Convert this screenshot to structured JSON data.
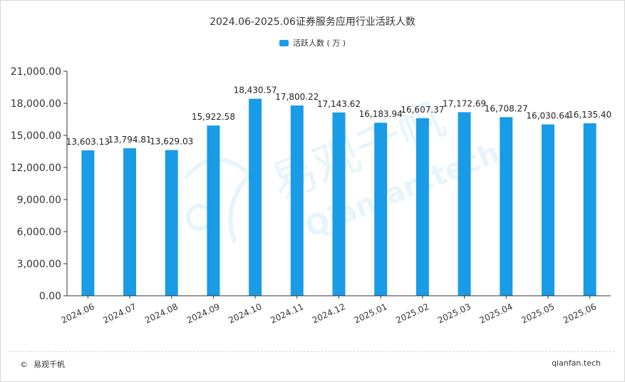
{
  "chart_data": {
    "type": "bar",
    "title": "2024.06-2025.06证券服务应用行业活跃人数",
    "categories": [
      "2024.06",
      "2024.07",
      "2024.08",
      "2024.09",
      "2024.10",
      "2024.11",
      "2024.12",
      "2025.01",
      "2025.02",
      "2025.03",
      "2025.04",
      "2025.05",
      "2025.06"
    ],
    "series": [
      {
        "name": "活跃人数（万）",
        "values": [
          13603.13,
          13794.81,
          13629.03,
          15922.58,
          18430.57,
          17800.22,
          17143.62,
          16183.94,
          16607.37,
          17172.69,
          16708.27,
          16030.64,
          16135.4
        ],
        "labels": [
          "13,603.13",
          "13,794.81",
          "13,629.03",
          "15,922.58",
          "18,430.57",
          "17,800.22",
          "17,143.62",
          "16,183.94",
          "16,607.37",
          "17,172.69",
          "16,708.27",
          "16,030.64",
          "16,135.40"
        ]
      }
    ],
    "ylim": [
      0,
      21000
    ],
    "yticks": [
      0,
      3000,
      6000,
      9000,
      12000,
      15000,
      18000,
      21000
    ],
    "ytick_labels": [
      "0.00",
      "3,000.00",
      "6,000.00",
      "9,000.00",
      "12,000.00",
      "15,000.00",
      "18,000.00",
      "21,000.00"
    ],
    "grid": false,
    "legend_position": "top-center",
    "bar_color": "#1a9be6"
  },
  "legend_label": "活跃人数 ( 万 )",
  "footer": {
    "copyright_symbol": "©",
    "brand": "易观千帆",
    "site": "qianfan.tech"
  },
  "watermark": {
    "text_cn": "易观千帆",
    "text_en": "Qianfan.tech"
  }
}
